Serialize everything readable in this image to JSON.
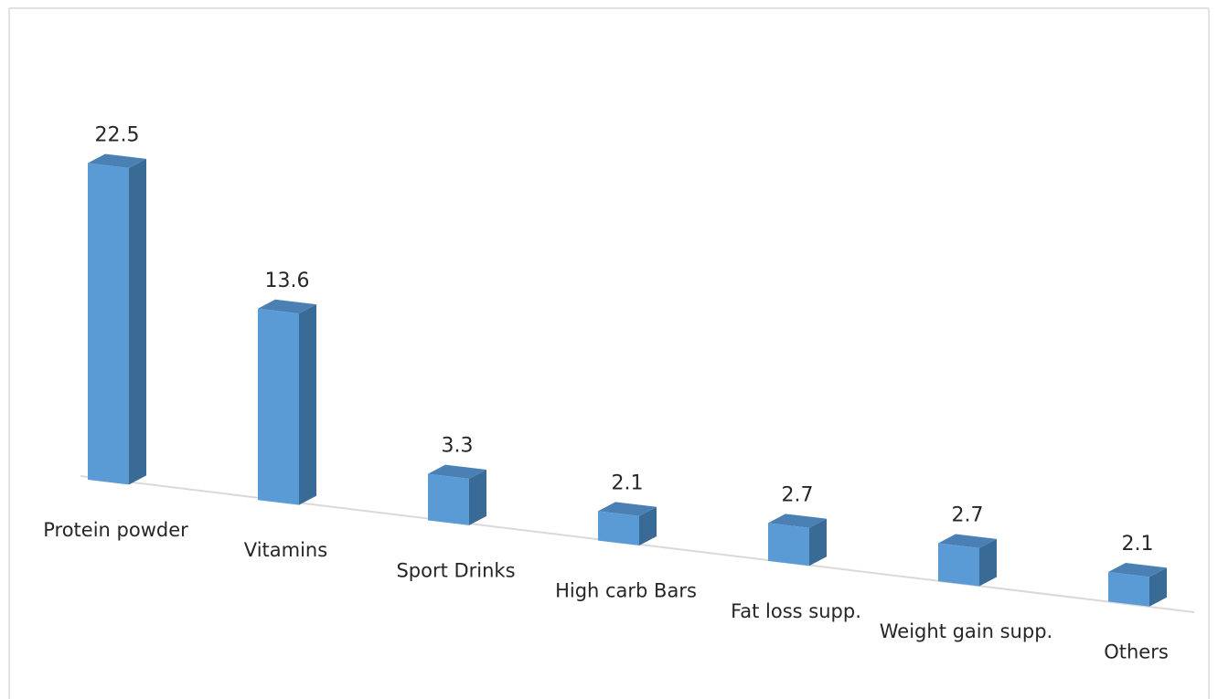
{
  "chart_data": {
    "type": "bar",
    "categories": [
      "Protein powder",
      "Vitamins",
      "Sport Drinks",
      "High carb Bars",
      "Fat loss supp.",
      "Weight gain supp.",
      "Others"
    ],
    "values": [
      22.5,
      13.6,
      3.3,
      2.1,
      2.7,
      2.7,
      2.1
    ],
    "title": "",
    "xlabel": "",
    "ylabel": "",
    "ylim": [
      0,
      25
    ],
    "grid": false,
    "legend": "none",
    "data_labels": true,
    "style": "3d-column"
  },
  "colors": {
    "bar_front": "#5B9BD5",
    "bar_side": "#3A6A96",
    "bar_top": "#4A80B4",
    "baseline": "#D9D9D9",
    "frame_border": "#D9D9D9"
  }
}
